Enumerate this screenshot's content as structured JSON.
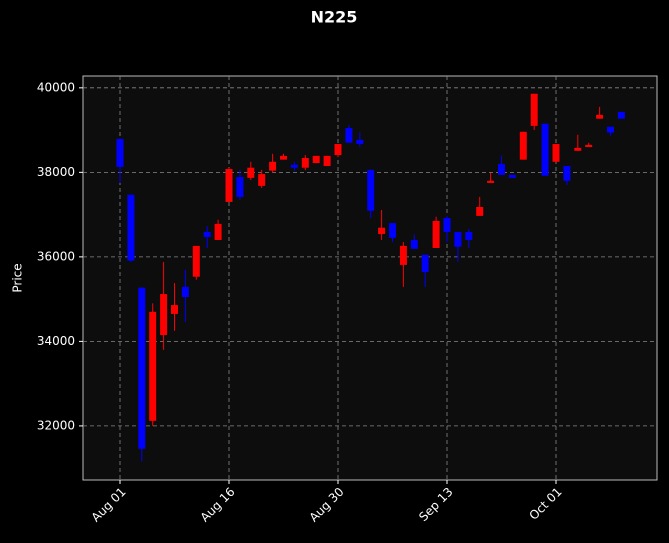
{
  "chart_data": {
    "type": "candlestick",
    "title": "N225",
    "ylabel": "Price",
    "categories": [
      "Aug 01",
      null,
      null,
      null,
      null,
      null,
      null,
      null,
      null,
      null,
      "Aug 16",
      null,
      null,
      null,
      null,
      null,
      null,
      null,
      null,
      null,
      "Aug 30",
      null,
      null,
      null,
      null,
      null,
      null,
      null,
      null,
      null,
      "Sep 13",
      null,
      null,
      null,
      null,
      null,
      null,
      null,
      null,
      null,
      "Oct 01",
      null,
      null,
      null,
      null,
      null,
      null
    ],
    "open": [
      38790,
      37470,
      35270,
      32120,
      34150,
      34650,
      35290,
      35530,
      36590,
      36400,
      37300,
      37890,
      37870,
      37680,
      38040,
      38300,
      38180,
      38110,
      38220,
      38150,
      38410,
      39050,
      38770,
      38060,
      36540,
      36800,
      35810,
      36400,
      36050,
      36210,
      36920,
      36590,
      36590,
      36970,
      37750,
      38200,
      37940,
      38300,
      39100,
      39150,
      38250,
      38150,
      38510,
      38600,
      39270,
      39080,
      39430
    ],
    "high": [
      38800,
      37470,
      35280,
      34900,
      35880,
      35380,
      35690,
      36260,
      36730,
      36880,
      38100,
      38060,
      38250,
      38060,
      38440,
      38440,
      38250,
      38410,
      38390,
      38390,
      38670,
      39120,
      38950,
      38060,
      37110,
      36800,
      36350,
      36530,
      36050,
      36950,
      36970,
      36590,
      36660,
      37420,
      37990,
      38400,
      37940,
      38960,
      39860,
      39150,
      38670,
      38150,
      38890,
      38700,
      39550,
      39080,
      39430
    ],
    "low": [
      37750,
      35880,
      31160,
      32000,
      33800,
      34250,
      34460,
      35460,
      36210,
      36400,
      37300,
      37350,
      37820,
      37630,
      38000,
      38300,
      38030,
      38050,
      38220,
      38150,
      38360,
      38700,
      38600,
      36920,
      36400,
      36350,
      35290,
      36190,
      35290,
      36210,
      36350,
      35880,
      36210,
      36970,
      37750,
      37940,
      37870,
      38300,
      39000,
      37920,
      38250,
      37700,
      38510,
      38600,
      39270,
      38870,
      39270
    ],
    "close": [
      38130,
      35910,
      31460,
      34700,
      35120,
      34860,
      35050,
      36260,
      36470,
      36780,
      38080,
      37420,
      38110,
      37960,
      38250,
      38390,
      38110,
      38340,
      38390,
      38390,
      38670,
      38700,
      38670,
      37090,
      36690,
      36450,
      36260,
      36190,
      35640,
      36850,
      36590,
      36240,
      36400,
      37180,
      37800,
      37940,
      37870,
      38960,
      39860,
      37920,
      38670,
      37800,
      38580,
      38650,
      39360,
      38940,
      39270
    ],
    "up_color": "#ff0000",
    "down_color": "#0000ff",
    "ylim": [
      30720,
      40280
    ],
    "yticks": [
      32000,
      34000,
      36000,
      38000,
      40000
    ],
    "grid": true
  }
}
